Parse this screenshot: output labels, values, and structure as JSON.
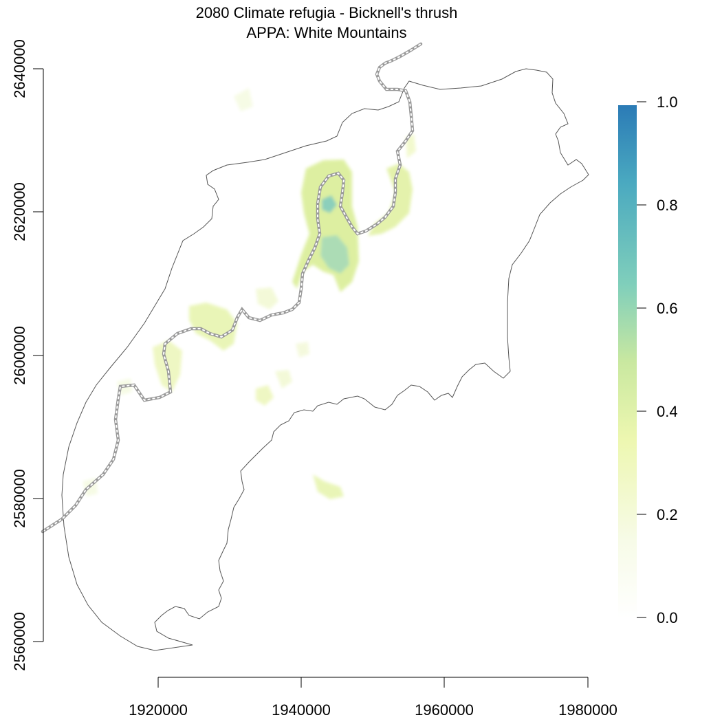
{
  "title": {
    "line1": "2080 Climate refugia - Bicknell's thrush",
    "line2": "APPA: White Mountains"
  },
  "axes": {
    "x_ticks": [
      "1920000",
      "1940000",
      "1960000",
      "1980000"
    ],
    "y_ticks": [
      "2560000",
      "2580000",
      "2600000",
      "2620000",
      "2640000"
    ]
  },
  "legend": {
    "labels": [
      "0.0",
      "0.2",
      "0.4",
      "0.6",
      "0.8",
      "1.0"
    ],
    "colors": [
      "#ffffff",
      "#f7fbe8",
      "#edf7b0",
      "#c9e8a0",
      "#80cfbb",
      "#3f9fbf",
      "#2b7bb6"
    ]
  },
  "colors": {
    "boundary": "#555555",
    "trail": "#9a9a9a",
    "refugia_low": "#f4f9d4",
    "refugia_mid": "#dcef9c",
    "refugia_high": "#9bd4b6"
  }
}
